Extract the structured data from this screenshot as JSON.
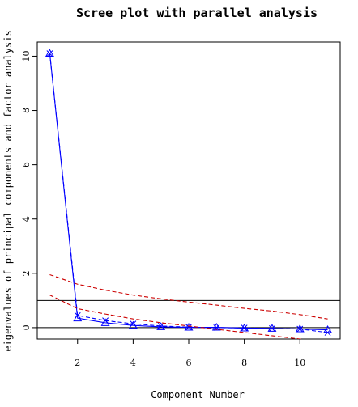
{
  "chart_data": {
    "type": "line",
    "title": "Scree plot with parallel analysis",
    "xlabel": "Component Number",
    "ylabel": "eigenvalues of principal components and factor analysis",
    "xlim": [
      0.55,
      11.45
    ],
    "ylim": [
      -0.42,
      10.52
    ],
    "xticks": [
      2,
      4,
      6,
      8,
      10
    ],
    "yticks": [
      0,
      2,
      4,
      6,
      8,
      10
    ],
    "grid": false,
    "legend": "none",
    "x": [
      1,
      2,
      3,
      4,
      5,
      6,
      7,
      8,
      9,
      10,
      11
    ],
    "series": [
      {
        "marker": "triangle",
        "line": "solid",
        "color": "#0000ff",
        "values": [
          10.1,
          0.35,
          0.18,
          0.08,
          0.03,
          0.01,
          0.01,
          -0.02,
          -0.03,
          -0.05,
          -0.08
        ]
      },
      {
        "marker": "x",
        "line": "dashed",
        "color": "#0000ff",
        "values": [
          10.1,
          0.45,
          0.26,
          0.14,
          0.06,
          0.02,
          0.0,
          -0.01,
          -0.03,
          -0.05,
          -0.18
        ]
      },
      {
        "marker": "none",
        "line": "dashed",
        "color": "#cc0000",
        "values": [
          1.95,
          1.6,
          1.38,
          1.2,
          1.06,
          0.94,
          0.83,
          0.71,
          0.61,
          0.48,
          0.32
        ]
      },
      {
        "marker": "none",
        "line": "dashed",
        "color": "#cc0000",
        "values": [
          1.2,
          0.7,
          0.5,
          0.32,
          0.18,
          0.06,
          -0.06,
          -0.18,
          -0.3,
          -0.42,
          -0.55
        ]
      }
    ],
    "reference_lines": [
      {
        "orientation": "horizontal",
        "y": 1,
        "color": "#000000"
      },
      {
        "orientation": "horizontal",
        "y": 0,
        "color": "#000000"
      }
    ]
  }
}
